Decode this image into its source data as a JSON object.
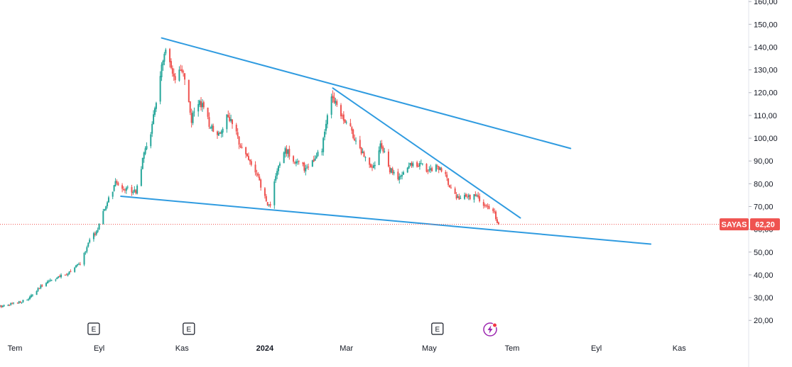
{
  "chart_data": {
    "type": "candlestick",
    "symbol": "SAYAS",
    "last_price": 62.2,
    "last_price_label": "62,20",
    "y_axis": {
      "ylim": [
        15,
        164
      ],
      "ticks": [
        "20,00",
        "30,00",
        "40,00",
        "50,00",
        "60,00",
        "70,00",
        "80,00",
        "90,00",
        "100,00",
        "110,00",
        "120,00",
        "130,00",
        "140,00",
        "150,00",
        "160,00"
      ]
    },
    "x_axis": {
      "labels": [
        {
          "text": "Tem",
          "date": "2023-07",
          "bold": false
        },
        {
          "text": "Eyl",
          "date": "2023-09",
          "bold": false
        },
        {
          "text": "Kas",
          "date": "2023-11",
          "bold": false
        },
        {
          "text": "2024",
          "date": "2024-01",
          "bold": true
        },
        {
          "text": "Mar",
          "date": "2024-03",
          "bold": false
        },
        {
          "text": "May",
          "date": "2024-05",
          "bold": false
        },
        {
          "text": "Tem",
          "date": "2024-07",
          "bold": false
        },
        {
          "text": "Eyl",
          "date": "2024-09",
          "bold": false
        },
        {
          "text": "Kas",
          "date": "2024-11",
          "bold": false
        }
      ]
    },
    "price_path": [
      [
        "2023-06-19",
        26
      ],
      [
        "2023-07-10",
        29
      ],
      [
        "2023-07-24",
        37
      ],
      [
        "2023-08-07",
        40
      ],
      [
        "2023-08-18",
        45
      ],
      [
        "2023-08-25",
        55
      ],
      [
        "2023-08-31",
        60
      ],
      [
        "2023-09-07",
        72
      ],
      [
        "2023-09-13",
        80
      ],
      [
        "2023-09-20",
        78
      ],
      [
        "2023-09-28",
        77
      ],
      [
        "2023-10-05",
        95
      ],
      [
        "2023-10-10",
        105
      ],
      [
        "2023-10-16",
        128
      ],
      [
        "2023-10-20",
        138
      ],
      [
        "2023-10-26",
        125
      ],
      [
        "2023-11-02",
        130
      ],
      [
        "2023-11-08",
        108
      ],
      [
        "2023-11-14",
        117
      ],
      [
        "2023-11-21",
        106
      ],
      [
        "2023-11-28",
        102
      ],
      [
        "2023-12-05",
        110
      ],
      [
        "2023-12-12",
        100
      ],
      [
        "2023-12-19",
        92
      ],
      [
        "2023-12-26",
        84
      ],
      [
        "2024-01-02",
        72
      ],
      [
        "2024-01-05",
        70
      ],
      [
        "2024-01-08",
        82
      ],
      [
        "2024-01-16",
        95
      ],
      [
        "2024-01-23",
        90
      ],
      [
        "2024-01-30",
        87
      ],
      [
        "2024-02-06",
        90
      ],
      [
        "2024-02-12",
        95
      ],
      [
        "2024-02-16",
        110
      ],
      [
        "2024-02-20",
        119
      ],
      [
        "2024-02-27",
        110
      ],
      [
        "2024-03-05",
        103
      ],
      [
        "2024-03-11",
        95
      ],
      [
        "2024-03-18",
        89
      ],
      [
        "2024-03-22",
        88
      ],
      [
        "2024-03-26",
        98
      ],
      [
        "2024-04-02",
        86
      ],
      [
        "2024-04-09",
        82
      ],
      [
        "2024-04-16",
        88
      ],
      [
        "2024-04-23",
        89
      ],
      [
        "2024-04-30",
        86
      ],
      [
        "2024-05-07",
        88
      ],
      [
        "2024-05-14",
        82
      ],
      [
        "2024-05-21",
        74
      ],
      [
        "2024-05-28",
        74
      ],
      [
        "2024-06-04",
        75
      ],
      [
        "2024-06-11",
        70
      ],
      [
        "2024-06-18",
        67
      ],
      [
        "2024-06-21",
        62.2
      ]
    ],
    "trendlines": [
      {
        "from": [
          "2023-10-17",
          144
        ],
        "to": [
          "2024-08-13",
          95.5
        ]
      },
      {
        "from": [
          "2024-02-20",
          122
        ],
        "to": [
          "2024-07-07",
          65
        ]
      },
      {
        "from": [
          "2023-09-17",
          74.5
        ],
        "to": [
          "2024-10-11",
          53.5
        ]
      }
    ],
    "earnings_markers": [
      "2023-08-28",
      "2023-11-06",
      "2024-05-07"
    ],
    "color_up": "#26a69a",
    "color_down": "#ef5350",
    "trendline_color": "#2f9be0"
  },
  "markers": {
    "earnings_label": "E",
    "dividend_icon": "lightning-icon"
  }
}
